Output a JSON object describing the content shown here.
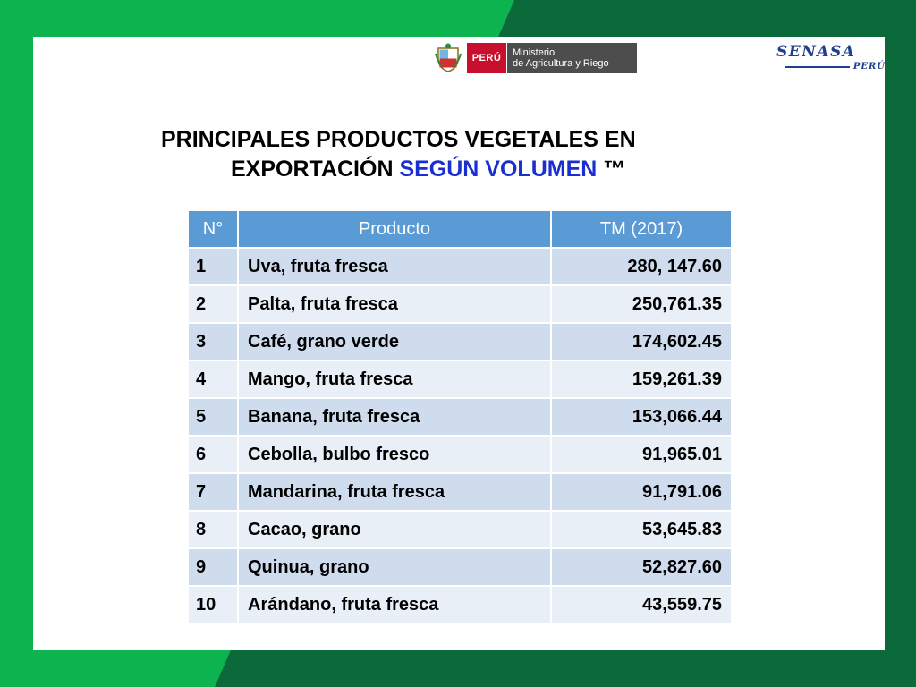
{
  "header": {
    "peru_label": "PERÚ",
    "ministry_line1": "Ministerio",
    "ministry_line2": "de Agricultura y Riego",
    "senasa_name": "SENASA",
    "senasa_sub": "PERÚ"
  },
  "title": {
    "line1": "PRINCIPALES PRODUCTOS VEGETALES EN",
    "line2_black": "EXPORTACIÓN ",
    "line2_blue": "SEGÚN VOLUMEN",
    "line2_suffix": " ™"
  },
  "table": {
    "headers": [
      "N°",
      "Producto",
      "TM (2017)"
    ],
    "rows": [
      {
        "n": "1",
        "producto": "Uva, fruta fresca",
        "tm": "280, 147.60"
      },
      {
        "n": "2",
        "producto": "Palta, fruta fresca",
        "tm": "250,761.35"
      },
      {
        "n": "3",
        "producto": "Café, grano verde",
        "tm": "174,602.45"
      },
      {
        "n": "4",
        "producto": "Mango, fruta fresca",
        "tm": "159,261.39"
      },
      {
        "n": "5",
        "producto": "Banana, fruta fresca",
        "tm": "153,066.44"
      },
      {
        "n": "6",
        "producto": "Cebolla, bulbo fresco",
        "tm": "91,965.01"
      },
      {
        "n": "7",
        "producto": "Mandarina, fruta fresca",
        "tm": "91,791.06"
      },
      {
        "n": "8",
        "producto": "Cacao, grano",
        "tm": "53,645.83"
      },
      {
        "n": "9",
        "producto": "Quinua, grano",
        "tm": "52,827.60"
      },
      {
        "n": "10",
        "producto": "Arándano, fruta fresca",
        "tm": "43,559.75"
      }
    ]
  },
  "colors": {
    "background_dark_green": "#0c6a3a",
    "background_bright_green": "#0db34e",
    "table_header": "#5b9bd5",
    "row_dark": "#cfdcee",
    "row_light": "#e9eff7",
    "title_accent": "#1a2fd0"
  }
}
